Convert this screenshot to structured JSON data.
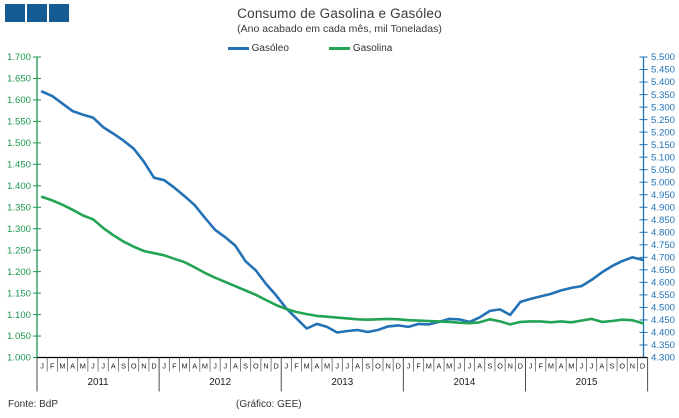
{
  "header": {
    "title": "Consumo de Gasolina e Gasóleo",
    "subtitle": "(Ano acabado em cada mês,  mil Toneladas)",
    "logo_color": "#175B93"
  },
  "legend": [
    {
      "label": "Gasóleo",
      "color": "#2272B5"
    },
    {
      "label": "Gasolina",
      "color": "#23A455"
    }
  ],
  "footer": {
    "source": "Fonte: BdP",
    "credit": "(Gráfico:  GEE)"
  },
  "chart_data": {
    "type": "line",
    "title": "Consumo de Gasolina e Gasóleo",
    "subtitle": "(Ano acabado em cada mês, mil Toneladas)",
    "unit": "mil Toneladas",
    "grid": false,
    "legend_position": "top",
    "month_letters": [
      "J",
      "F",
      "M",
      "A",
      "M",
      "J",
      "J",
      "A",
      "S",
      "O",
      "N",
      "D"
    ],
    "years": [
      "2011",
      "2012",
      "2013",
      "2014",
      "2015"
    ],
    "left_axis": {
      "for_series": "Gasolina",
      "min": 1.0,
      "max": 1.7,
      "step": 0.05,
      "color": "#1B9850",
      "ticks": [
        "1.000",
        "1.050",
        "1.100",
        "1.150",
        "1.200",
        "1.250",
        "1.300",
        "1.350",
        "1.400",
        "1.450",
        "1.500",
        "1.550",
        "1.600",
        "1.650",
        "1.700"
      ]
    },
    "right_axis": {
      "for_series": "Gasóleo",
      "min": 4.3,
      "max": 5.5,
      "step": 0.05,
      "color": "#2272B5",
      "ticks": [
        "4.300",
        "4.350",
        "4.400",
        "4.450",
        "4.500",
        "4.550",
        "4.600",
        "4.650",
        "4.700",
        "4.750",
        "4.800",
        "4.850",
        "4.900",
        "4.950",
        "5.000",
        "5.050",
        "5.100",
        "5.150",
        "5.200",
        "5.250",
        "5.300",
        "5.350",
        "5.400",
        "5.450",
        "5.500"
      ]
    },
    "series": [
      {
        "name": "Gasóleo",
        "axis": "right",
        "color": "#2272B5",
        "values": [
          5.362,
          5.344,
          5.314,
          5.284,
          5.27,
          5.258,
          5.22,
          5.194,
          5.166,
          5.134,
          5.082,
          5.018,
          5.008,
          4.978,
          4.944,
          4.908,
          4.858,
          4.81,
          4.78,
          4.746,
          4.684,
          4.648,
          4.594,
          4.548,
          4.496,
          4.456,
          4.416,
          4.434,
          4.422,
          4.4,
          4.406,
          4.41,
          4.402,
          4.41,
          4.424,
          4.428,
          4.422,
          4.434,
          4.432,
          4.442,
          4.454,
          4.452,
          4.442,
          4.46,
          4.486,
          4.492,
          4.47,
          4.522,
          4.534,
          4.544,
          4.554,
          4.568,
          4.578,
          4.585,
          4.61,
          4.64,
          4.665,
          4.685,
          4.7,
          4.69
        ]
      },
      {
        "name": "Gasolina",
        "axis": "left",
        "color": "#23A455",
        "values": [
          1.374,
          1.366,
          1.356,
          1.344,
          1.331,
          1.322,
          1.302,
          1.285,
          1.27,
          1.258,
          1.248,
          1.243,
          1.238,
          1.23,
          1.222,
          1.21,
          1.197,
          1.186,
          1.176,
          1.166,
          1.156,
          1.146,
          1.134,
          1.122,
          1.113,
          1.106,
          1.101,
          1.097,
          1.095,
          1.093,
          1.091,
          1.089,
          1.088,
          1.089,
          1.09,
          1.089,
          1.087,
          1.086,
          1.085,
          1.084,
          1.083,
          1.081,
          1.08,
          1.082,
          1.089,
          1.084,
          1.077,
          1.083,
          1.084,
          1.084,
          1.082,
          1.084,
          1.082,
          1.086,
          1.09,
          1.083,
          1.085,
          1.088,
          1.087,
          1.08
        ]
      }
    ]
  }
}
